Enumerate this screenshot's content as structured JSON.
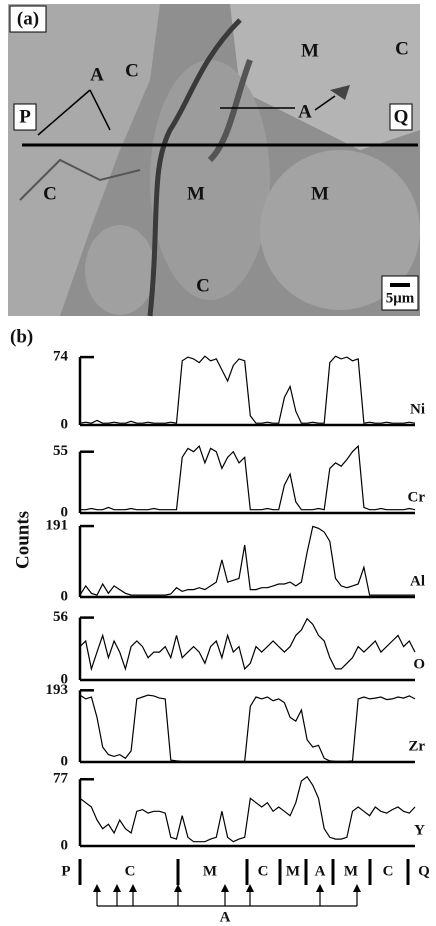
{
  "panel_a": {
    "label": "(a)",
    "annotations": [
      "A",
      "C",
      "M",
      "C",
      "A",
      "P",
      "Q",
      "C",
      "M",
      "M",
      "C"
    ],
    "scale_bar": "5μm"
  },
  "panel_b_label": "(b)",
  "y_axis_label": "Counts",
  "chart_data": [
    {
      "type": "line",
      "label": "Ni",
      "color": "#000000",
      "ylim": [
        0,
        85
      ],
      "yticks": [
        0,
        74
      ],
      "values": [
        2,
        3,
        2,
        5,
        2,
        2,
        3,
        2,
        2,
        4,
        2,
        2,
        3,
        2,
        2,
        2,
        3,
        2,
        70,
        74,
        72,
        68,
        75,
        70,
        72,
        60,
        48,
        65,
        72,
        70,
        10,
        2,
        2,
        3,
        2,
        2,
        30,
        42,
        15,
        2,
        2,
        3,
        2,
        2,
        68,
        75,
        72,
        74,
        70,
        72,
        2,
        3,
        2,
        2,
        3,
        2,
        2,
        2,
        3,
        2
      ]
    },
    {
      "type": "line",
      "label": "Cr",
      "color": "#000000",
      "ylim": [
        0,
        70
      ],
      "yticks": [
        0,
        55
      ],
      "values": [
        3,
        3,
        4,
        3,
        3,
        5,
        3,
        3,
        3,
        4,
        3,
        3,
        3,
        4,
        3,
        3,
        3,
        3,
        50,
        58,
        55,
        60,
        45,
        58,
        55,
        40,
        50,
        55,
        45,
        50,
        3,
        3,
        3,
        4,
        3,
        3,
        25,
        35,
        10,
        3,
        3,
        3,
        4,
        3,
        40,
        45,
        42,
        48,
        55,
        60,
        5,
        3,
        3,
        4,
        3,
        3,
        3,
        3,
        4,
        3
      ]
    },
    {
      "type": "line",
      "label": "Al",
      "color": "#000000",
      "ylim": [
        0,
        210
      ],
      "yticks": [
        0,
        191
      ],
      "values": [
        5,
        30,
        10,
        5,
        35,
        10,
        30,
        20,
        10,
        5,
        5,
        5,
        5,
        5,
        5,
        5,
        8,
        25,
        15,
        20,
        20,
        25,
        20,
        30,
        40,
        100,
        40,
        45,
        50,
        140,
        20,
        20,
        25,
        25,
        30,
        35,
        35,
        40,
        30,
        40,
        120,
        190,
        185,
        175,
        150,
        50,
        30,
        25,
        30,
        35,
        80,
        5,
        5,
        5,
        5,
        5,
        5,
        5,
        5,
        5
      ]
    },
    {
      "type": "line",
      "label": "O",
      "color": "#000000",
      "ylim": [
        0,
        70
      ],
      "yticks": [
        0,
        56
      ],
      "values": [
        30,
        35,
        10,
        25,
        40,
        20,
        35,
        25,
        10,
        30,
        35,
        30,
        20,
        25,
        25,
        30,
        20,
        40,
        20,
        25,
        30,
        25,
        15,
        30,
        35,
        20,
        40,
        25,
        30,
        10,
        15,
        30,
        25,
        30,
        35,
        30,
        25,
        30,
        40,
        45,
        55,
        50,
        40,
        35,
        20,
        10,
        10,
        15,
        20,
        30,
        25,
        30,
        35,
        25,
        30,
        35,
        40,
        30,
        35,
        25
      ]
    },
    {
      "type": "line",
      "label": "Zr",
      "color": "#000000",
      "ylim": [
        0,
        210
      ],
      "yticks": [
        0,
        193
      ],
      "values": [
        180,
        170,
        175,
        120,
        40,
        20,
        15,
        20,
        10,
        30,
        170,
        175,
        180,
        178,
        172,
        170,
        5,
        3,
        2,
        2,
        2,
        2,
        2,
        2,
        2,
        2,
        2,
        2,
        2,
        2,
        150,
        175,
        170,
        175,
        165,
        170,
        160,
        120,
        110,
        140,
        60,
        40,
        45,
        10,
        3,
        2,
        2,
        2,
        3,
        170,
        175,
        170,
        172,
        175,
        168,
        170,
        175,
        172,
        178,
        170
      ]
    },
    {
      "type": "line",
      "label": "Y",
      "color": "#000000",
      "ylim": [
        0,
        90
      ],
      "yticks": [
        0,
        77
      ],
      "values": [
        55,
        50,
        45,
        30,
        20,
        25,
        15,
        30,
        20,
        15,
        40,
        42,
        38,
        40,
        40,
        38,
        10,
        8,
        35,
        10,
        5,
        5,
        5,
        8,
        10,
        40,
        10,
        5,
        8,
        10,
        55,
        50,
        45,
        50,
        40,
        45,
        40,
        35,
        50,
        75,
        80,
        70,
        55,
        20,
        10,
        8,
        8,
        10,
        40,
        45,
        40,
        35,
        45,
        40,
        38,
        42,
        45,
        40,
        38,
        45
      ]
    }
  ],
  "phase_labels": [
    "P",
    "C",
    "M",
    "C",
    "M",
    "A",
    "M",
    "C",
    "Q"
  ],
  "arrow_label": "A"
}
